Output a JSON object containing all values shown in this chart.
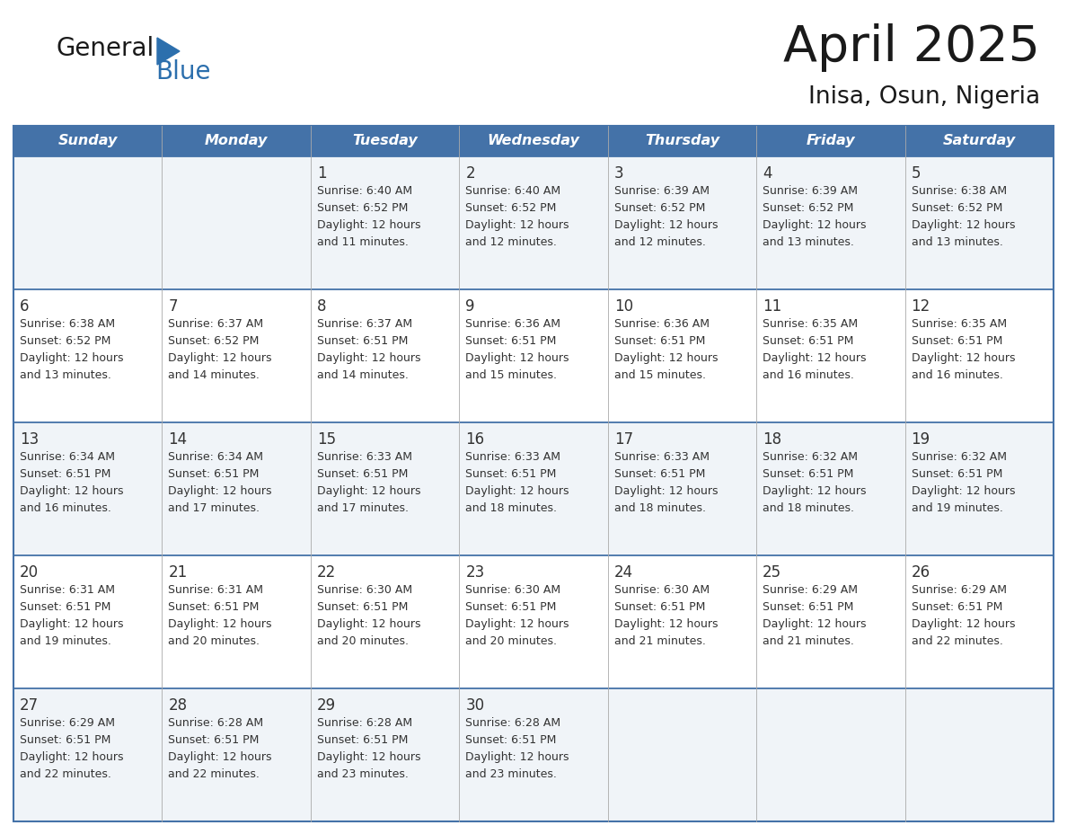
{
  "title": "April 2025",
  "subtitle": "Inisa, Osun, Nigeria",
  "days_of_week": [
    "Sunday",
    "Monday",
    "Tuesday",
    "Wednesday",
    "Thursday",
    "Friday",
    "Saturday"
  ],
  "header_bg": "#4472a8",
  "header_text": "#ffffff",
  "row_bg_odd": "#f0f4f8",
  "row_bg_even": "#ffffff",
  "border_color": "#4472a8",
  "text_color": "#333333",
  "calendar": [
    [
      {
        "day": "",
        "sunrise": "",
        "sunset": "",
        "daylight": ""
      },
      {
        "day": "",
        "sunrise": "",
        "sunset": "",
        "daylight": ""
      },
      {
        "day": "1",
        "sunrise": "Sunrise: 6:40 AM",
        "sunset": "Sunset: 6:52 PM",
        "daylight": "Daylight: 12 hours\nand 11 minutes."
      },
      {
        "day": "2",
        "sunrise": "Sunrise: 6:40 AM",
        "sunset": "Sunset: 6:52 PM",
        "daylight": "Daylight: 12 hours\nand 12 minutes."
      },
      {
        "day": "3",
        "sunrise": "Sunrise: 6:39 AM",
        "sunset": "Sunset: 6:52 PM",
        "daylight": "Daylight: 12 hours\nand 12 minutes."
      },
      {
        "day": "4",
        "sunrise": "Sunrise: 6:39 AM",
        "sunset": "Sunset: 6:52 PM",
        "daylight": "Daylight: 12 hours\nand 13 minutes."
      },
      {
        "day": "5",
        "sunrise": "Sunrise: 6:38 AM",
        "sunset": "Sunset: 6:52 PM",
        "daylight": "Daylight: 12 hours\nand 13 minutes."
      }
    ],
    [
      {
        "day": "6",
        "sunrise": "Sunrise: 6:38 AM",
        "sunset": "Sunset: 6:52 PM",
        "daylight": "Daylight: 12 hours\nand 13 minutes."
      },
      {
        "day": "7",
        "sunrise": "Sunrise: 6:37 AM",
        "sunset": "Sunset: 6:52 PM",
        "daylight": "Daylight: 12 hours\nand 14 minutes."
      },
      {
        "day": "8",
        "sunrise": "Sunrise: 6:37 AM",
        "sunset": "Sunset: 6:51 PM",
        "daylight": "Daylight: 12 hours\nand 14 minutes."
      },
      {
        "day": "9",
        "sunrise": "Sunrise: 6:36 AM",
        "sunset": "Sunset: 6:51 PM",
        "daylight": "Daylight: 12 hours\nand 15 minutes."
      },
      {
        "day": "10",
        "sunrise": "Sunrise: 6:36 AM",
        "sunset": "Sunset: 6:51 PM",
        "daylight": "Daylight: 12 hours\nand 15 minutes."
      },
      {
        "day": "11",
        "sunrise": "Sunrise: 6:35 AM",
        "sunset": "Sunset: 6:51 PM",
        "daylight": "Daylight: 12 hours\nand 16 minutes."
      },
      {
        "day": "12",
        "sunrise": "Sunrise: 6:35 AM",
        "sunset": "Sunset: 6:51 PM",
        "daylight": "Daylight: 12 hours\nand 16 minutes."
      }
    ],
    [
      {
        "day": "13",
        "sunrise": "Sunrise: 6:34 AM",
        "sunset": "Sunset: 6:51 PM",
        "daylight": "Daylight: 12 hours\nand 16 minutes."
      },
      {
        "day": "14",
        "sunrise": "Sunrise: 6:34 AM",
        "sunset": "Sunset: 6:51 PM",
        "daylight": "Daylight: 12 hours\nand 17 minutes."
      },
      {
        "day": "15",
        "sunrise": "Sunrise: 6:33 AM",
        "sunset": "Sunset: 6:51 PM",
        "daylight": "Daylight: 12 hours\nand 17 minutes."
      },
      {
        "day": "16",
        "sunrise": "Sunrise: 6:33 AM",
        "sunset": "Sunset: 6:51 PM",
        "daylight": "Daylight: 12 hours\nand 18 minutes."
      },
      {
        "day": "17",
        "sunrise": "Sunrise: 6:33 AM",
        "sunset": "Sunset: 6:51 PM",
        "daylight": "Daylight: 12 hours\nand 18 minutes."
      },
      {
        "day": "18",
        "sunrise": "Sunrise: 6:32 AM",
        "sunset": "Sunset: 6:51 PM",
        "daylight": "Daylight: 12 hours\nand 18 minutes."
      },
      {
        "day": "19",
        "sunrise": "Sunrise: 6:32 AM",
        "sunset": "Sunset: 6:51 PM",
        "daylight": "Daylight: 12 hours\nand 19 minutes."
      }
    ],
    [
      {
        "day": "20",
        "sunrise": "Sunrise: 6:31 AM",
        "sunset": "Sunset: 6:51 PM",
        "daylight": "Daylight: 12 hours\nand 19 minutes."
      },
      {
        "day": "21",
        "sunrise": "Sunrise: 6:31 AM",
        "sunset": "Sunset: 6:51 PM",
        "daylight": "Daylight: 12 hours\nand 20 minutes."
      },
      {
        "day": "22",
        "sunrise": "Sunrise: 6:30 AM",
        "sunset": "Sunset: 6:51 PM",
        "daylight": "Daylight: 12 hours\nand 20 minutes."
      },
      {
        "day": "23",
        "sunrise": "Sunrise: 6:30 AM",
        "sunset": "Sunset: 6:51 PM",
        "daylight": "Daylight: 12 hours\nand 20 minutes."
      },
      {
        "day": "24",
        "sunrise": "Sunrise: 6:30 AM",
        "sunset": "Sunset: 6:51 PM",
        "daylight": "Daylight: 12 hours\nand 21 minutes."
      },
      {
        "day": "25",
        "sunrise": "Sunrise: 6:29 AM",
        "sunset": "Sunset: 6:51 PM",
        "daylight": "Daylight: 12 hours\nand 21 minutes."
      },
      {
        "day": "26",
        "sunrise": "Sunrise: 6:29 AM",
        "sunset": "Sunset: 6:51 PM",
        "daylight": "Daylight: 12 hours\nand 22 minutes."
      }
    ],
    [
      {
        "day": "27",
        "sunrise": "Sunrise: 6:29 AM",
        "sunset": "Sunset: 6:51 PM",
        "daylight": "Daylight: 12 hours\nand 22 minutes."
      },
      {
        "day": "28",
        "sunrise": "Sunrise: 6:28 AM",
        "sunset": "Sunset: 6:51 PM",
        "daylight": "Daylight: 12 hours\nand 22 minutes."
      },
      {
        "day": "29",
        "sunrise": "Sunrise: 6:28 AM",
        "sunset": "Sunset: 6:51 PM",
        "daylight": "Daylight: 12 hours\nand 23 minutes."
      },
      {
        "day": "30",
        "sunrise": "Sunrise: 6:28 AM",
        "sunset": "Sunset: 6:51 PM",
        "daylight": "Daylight: 12 hours\nand 23 minutes."
      },
      {
        "day": "",
        "sunrise": "",
        "sunset": "",
        "daylight": ""
      },
      {
        "day": "",
        "sunrise": "",
        "sunset": "",
        "daylight": ""
      },
      {
        "day": "",
        "sunrise": "",
        "sunset": "",
        "daylight": ""
      }
    ]
  ],
  "logo_text_general": "General",
  "logo_text_blue": "Blue",
  "logo_color_general": "#1a1a1a",
  "logo_color_blue": "#2c6fad",
  "logo_triangle_color": "#2c6fad",
  "title_color": "#1a1a1a",
  "subtitle_color": "#1a1a1a"
}
